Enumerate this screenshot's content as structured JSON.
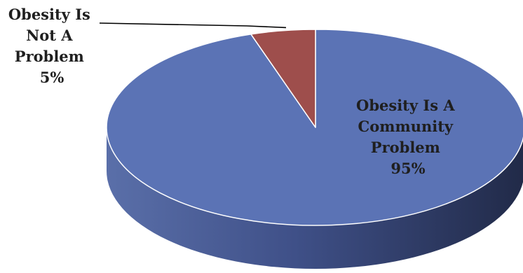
{
  "chart_data": {
    "type": "pie",
    "style": "3d",
    "slices": [
      {
        "label_lines": [
          "Obesity Is A",
          "Community",
          "Problem",
          "95%"
        ],
        "value": 95,
        "color": "#5B73B5"
      },
      {
        "label_lines": [
          "Obesity Is",
          "Not A",
          "Problem",
          "5%"
        ],
        "value": 5,
        "color": "#9E4E4C"
      }
    ]
  }
}
